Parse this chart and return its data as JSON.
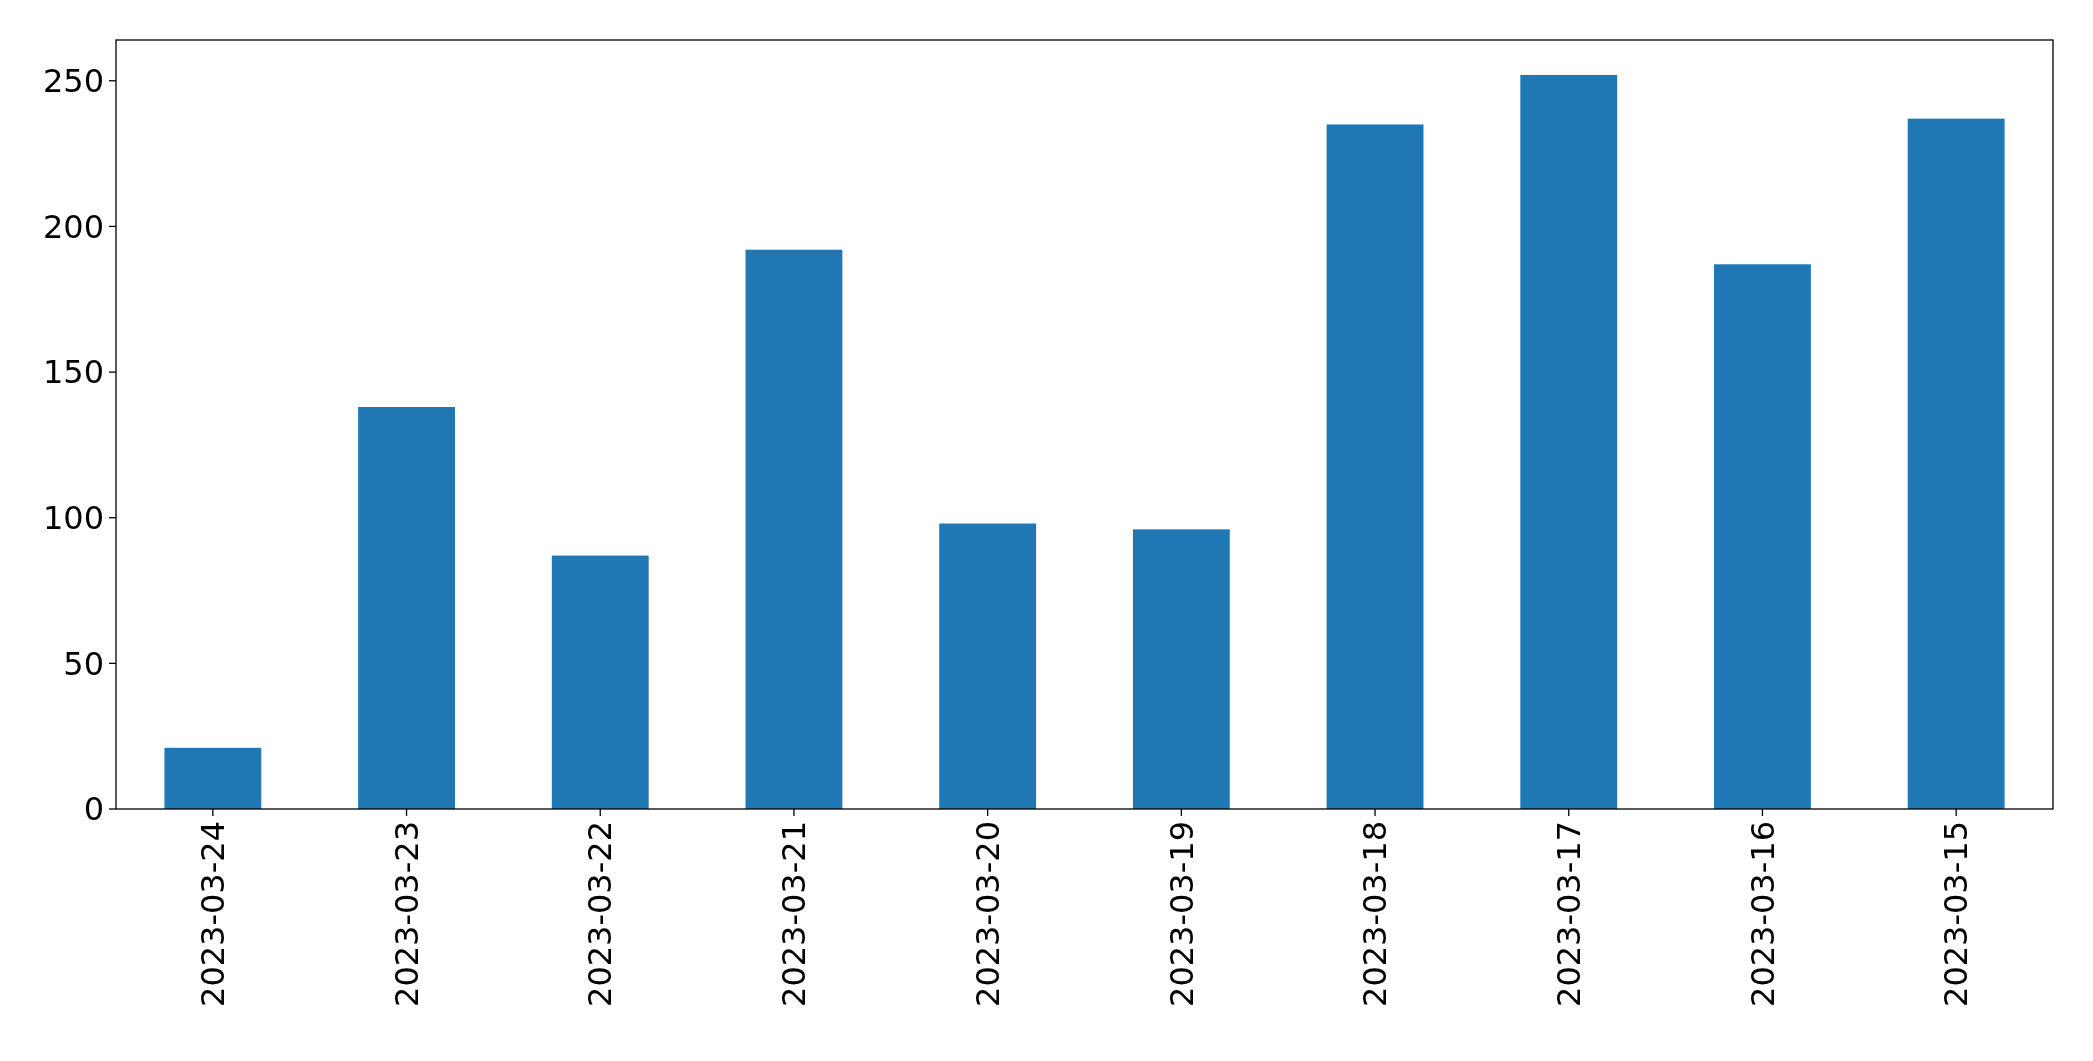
{
  "chart_data": {
    "type": "bar",
    "categories": [
      "2023-03-24",
      "2023-03-23",
      "2023-03-22",
      "2023-03-21",
      "2023-03-20",
      "2023-03-19",
      "2023-03-18",
      "2023-03-17",
      "2023-03-16",
      "2023-03-15"
    ],
    "values": [
      21,
      138,
      87,
      192,
      98,
      96,
      235,
      252,
      187,
      237
    ],
    "color": "#1f77b4",
    "ylim": [
      0,
      264
    ],
    "yticks": [
      0,
      50,
      100,
      150,
      200,
      250
    ]
  }
}
